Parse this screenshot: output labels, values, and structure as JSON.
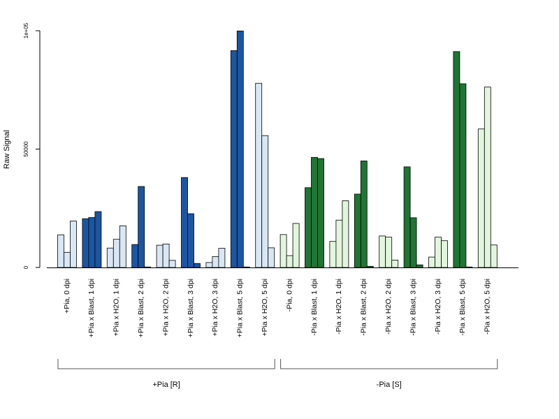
{
  "chart_data": {
    "type": "bar",
    "title": "",
    "xlabel": "",
    "ylabel": "Raw Signal",
    "ylim": [
      0,
      100000
    ],
    "y_ticks": [
      {
        "value": 0,
        "label": "0"
      },
      {
        "value": 50000,
        "label": "50000"
      },
      {
        "value": 100000,
        "label": "1e+05"
      }
    ],
    "colors": {
      "blast_plus": "#1c56a3",
      "mock_plus": "#d9e7f5",
      "blast_minus": "#1f7533",
      "mock_minus": "#e2f5dd",
      "bar_border": "#000000",
      "axis": "#000000",
      "bracket": "#555555"
    },
    "categories": [
      {
        "label": "+Pia, 0 dpi",
        "fill": "mock_plus",
        "values": [
          13800,
          6400,
          19600
        ]
      },
      {
        "label": "+Pia x Blast, 1 dpi",
        "fill": "blast_plus",
        "values": [
          20600,
          21100,
          23600
        ]
      },
      {
        "label": "+Pia x H2O, 1 dpi",
        "fill": "mock_plus",
        "values": [
          8200,
          11900,
          17600
        ]
      },
      {
        "label": "+Pia x Blast, 2 dpi",
        "fill": "blast_plus",
        "values": [
          9700,
          34200,
          200
        ]
      },
      {
        "label": "+Pia x H2O, 2 dpi",
        "fill": "mock_plus",
        "values": [
          9400,
          9900,
          3000
        ]
      },
      {
        "label": "+Pia x Blast, 3 dpi",
        "fill": "blast_plus",
        "values": [
          38000,
          22700,
          1700
        ]
      },
      {
        "label": "+Pia x H2O, 3 dpi",
        "fill": "mock_plus",
        "values": [
          2100,
          4600,
          8100
        ]
      },
      {
        "label": "+Pia x Blast, 5 dpi",
        "fill": "blast_plus",
        "values": [
          91600,
          99900,
          200
        ]
      },
      {
        "label": "+Pia x H2O, 5 dpi",
        "fill": "mock_plus",
        "values": [
          77800,
          55700,
          8300
        ]
      },
      {
        "label": "-Pia, 0 dpi",
        "fill": "mock_minus",
        "values": [
          13900,
          5000,
          18600
        ]
      },
      {
        "label": "-Pia x Blast, 1 dpi",
        "fill": "blast_minus",
        "values": [
          33700,
          46500,
          46000
        ]
      },
      {
        "label": "-Pia x H2O, 1 dpi",
        "fill": "mock_minus",
        "values": [
          11000,
          20000,
          28200
        ]
      },
      {
        "label": "-Pia x Blast, 2 dpi",
        "fill": "blast_minus",
        "values": [
          31000,
          45000,
          500
        ]
      },
      {
        "label": "-Pia x H2O, 2 dpi",
        "fill": "mock_minus",
        "values": [
          13300,
          12800,
          3100
        ]
      },
      {
        "label": "-Pia x Blast, 3 dpi",
        "fill": "blast_minus",
        "values": [
          42500,
          21000,
          1100
        ]
      },
      {
        "label": "-Pia x H2O, 3 dpi",
        "fill": "mock_minus",
        "values": [
          4400,
          12800,
          11300
        ]
      },
      {
        "label": "-Pia x Blast, 5 dpi",
        "fill": "blast_minus",
        "values": [
          91200,
          77600,
          200
        ]
      },
      {
        "label": "-Pia x H2O, 5 dpi",
        "fill": "mock_minus",
        "values": [
          58500,
          76200,
          9500
        ]
      }
    ],
    "groups": [
      {
        "label": "+Pia [R]",
        "first": 0,
        "last": 8
      },
      {
        "label": "-Pia [S]",
        "first": 9,
        "last": 17
      }
    ]
  }
}
